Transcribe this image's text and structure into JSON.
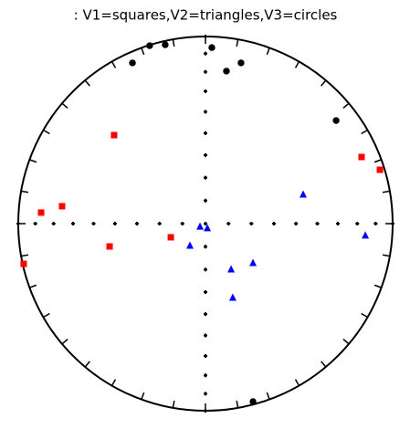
{
  "chart_data": {
    "type": "scatter",
    "title": ": V1=squares,V2=triangles,V3=circles",
    "xlim": [
      -1,
      1
    ],
    "ylim": [
      -1,
      1
    ],
    "series": [
      {
        "marker": "square",
        "color": "#ff0000",
        "x": [
          -0.488,
          -0.878,
          -0.766,
          -0.512,
          -0.185,
          -0.971,
          0.834,
          0.932
        ],
        "values": [
          0.473,
          0.059,
          0.093,
          -0.122,
          -0.073,
          -0.215,
          0.356,
          0.288
        ]
      },
      {
        "marker": "triangle",
        "color": "#0000ff",
        "x": [
          -0.029,
          0.01,
          -0.083,
          0.137,
          0.254,
          0.146,
          0.522,
          0.854
        ],
        "values": [
          -0.015,
          -0.024,
          -0.117,
          -0.244,
          -0.21,
          -0.395,
          0.156,
          -0.063
        ]
      },
      {
        "marker": "circle",
        "color": "#000000",
        "x": [
          -0.39,
          -0.298,
          -0.215,
          0.034,
          0.112,
          0.19,
          0.698,
          0.254
        ],
        "values": [
          0.859,
          0.951,
          0.956,
          0.941,
          0.815,
          0.859,
          0.551,
          -0.951
        ]
      }
    ]
  }
}
